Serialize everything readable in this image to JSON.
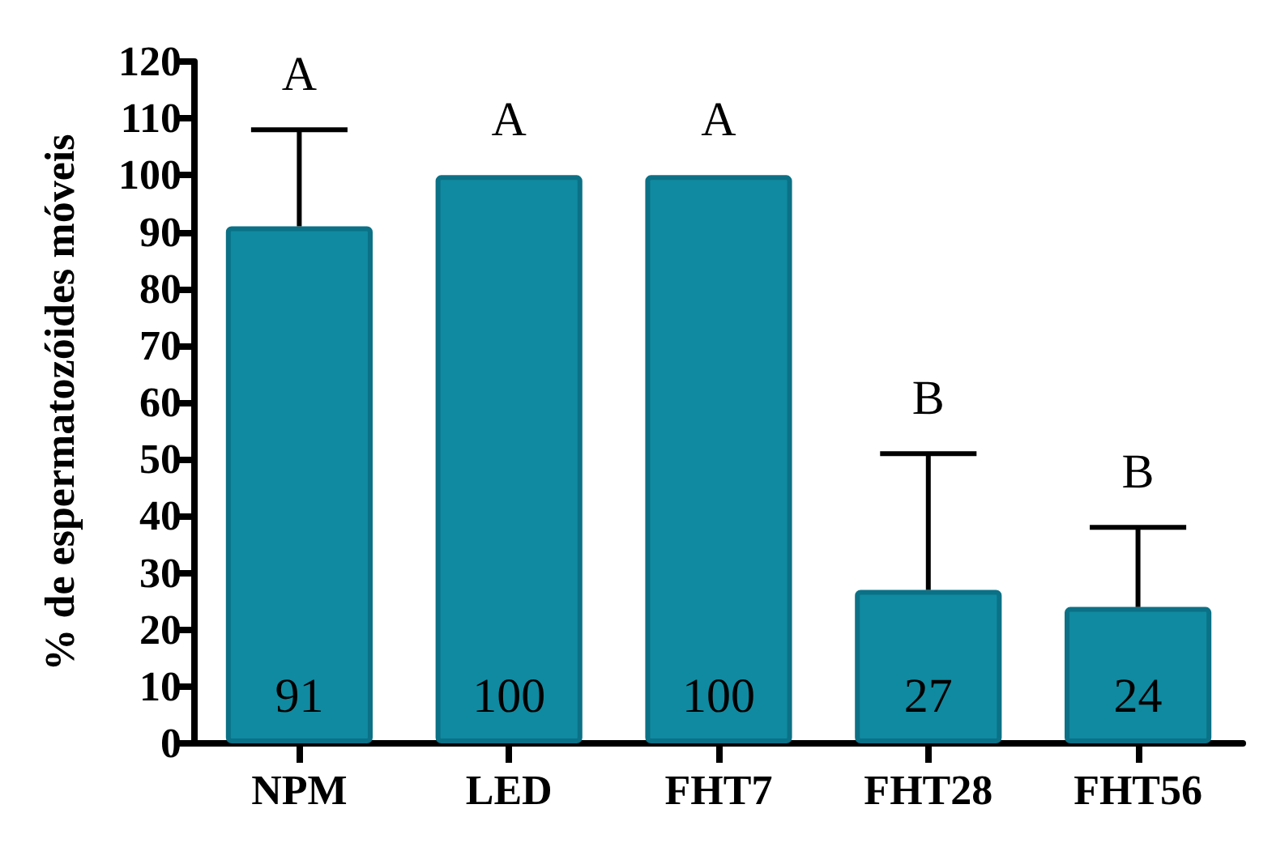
{
  "chart_data": {
    "type": "bar",
    "ylabel": "% de espermatozóides móveis",
    "categories": [
      "NPM",
      "LED",
      "FHT7",
      "FHT28",
      "FHT56"
    ],
    "values": [
      91,
      100,
      100,
      27,
      24
    ],
    "errors": [
      [
        91,
        108
      ],
      null,
      null,
      [
        27,
        51
      ],
      [
        24,
        38
      ]
    ],
    "color": "#108aa0",
    "data_labels": true,
    "ylim": [
      0,
      120
    ],
    "yticks": [
      0,
      10,
      20,
      30,
      40,
      50,
      60,
      70,
      80,
      90,
      100,
      110,
      120
    ],
    "grid": false,
    "annotations": [
      "A",
      "A",
      "A",
      "B",
      "B"
    ]
  }
}
